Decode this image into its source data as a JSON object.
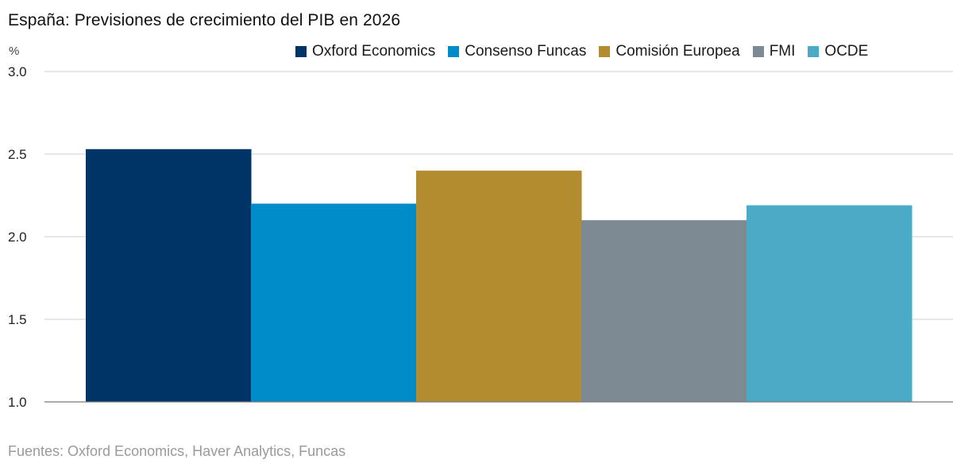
{
  "chart_data": {
    "type": "bar",
    "title": "España: Previsiones de crecimiento del PIB en 2026",
    "unit": "%",
    "categories": [
      "Oxford Economics",
      "Consenso Funcas",
      "Comisión Europea",
      "FMI",
      "OCDE"
    ],
    "values": [
      2.53,
      2.2,
      2.4,
      2.1,
      2.19
    ],
    "colors": [
      "#003366",
      "#008BC9",
      "#B38C30",
      "#7D8A93",
      "#4BAAC6"
    ],
    "ylim": [
      1.0,
      3.0
    ],
    "yticks": [
      "1.0",
      "1.5",
      "2.0",
      "2.5",
      "3.0"
    ],
    "ytick_values": [
      1.0,
      1.5,
      2.0,
      2.5,
      3.0
    ],
    "grid": true,
    "legend": "top-right",
    "xlabel": "",
    "ylabel": ""
  },
  "source": "Fuentes: Oxford Economics, Haver Analytics, Funcas"
}
